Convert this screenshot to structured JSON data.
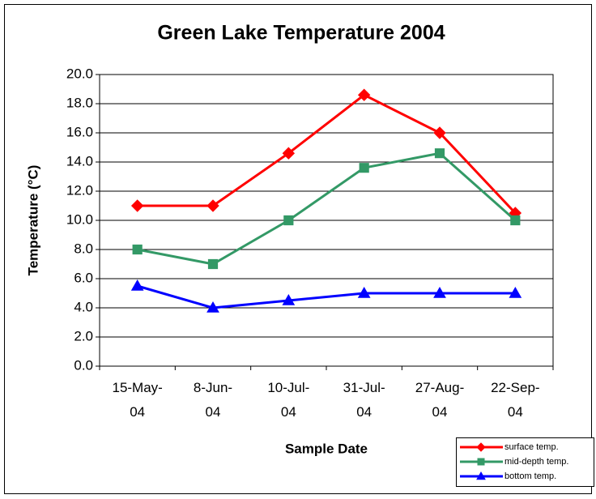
{
  "chart_data": {
    "type": "line",
    "title": "Green Lake Temperature 2004",
    "x_label": "Sample Date",
    "y_label": "Temperature (°C)",
    "categories": [
      "15-May-04",
      "8-Jun-04",
      "10-Jul-04",
      "31-Jul-04",
      "27-Aug-04",
      "22-Sep-04"
    ],
    "series": [
      {
        "name": "surface temp.",
        "color": "#ff0000",
        "marker": "diamond",
        "values": [
          11,
          11,
          14.6,
          18.6,
          16,
          10.5
        ]
      },
      {
        "name": "mid-depth temp.",
        "color": "#339966",
        "marker": "square",
        "values": [
          8,
          7,
          10,
          13.6,
          14.6,
          10
        ]
      },
      {
        "name": "bottom temp.",
        "color": "#0000ff",
        "marker": "triangle",
        "values": [
          5.5,
          4,
          4.5,
          5,
          5,
          5
        ]
      }
    ],
    "ylim": [
      0,
      20
    ],
    "yticks": [
      {
        "value": 0,
        "label": "0.0"
      },
      {
        "value": 2,
        "label": "2.0"
      },
      {
        "value": 4,
        "label": "4.0"
      },
      {
        "value": 6,
        "label": "6.0"
      },
      {
        "value": 8,
        "label": "8.0"
      },
      {
        "value": 10,
        "label": "10.0"
      },
      {
        "value": 12,
        "label": "12.0"
      },
      {
        "value": 14,
        "label": "14.0"
      },
      {
        "value": 16,
        "label": "16.0"
      },
      {
        "value": 18,
        "label": "18.0"
      },
      {
        "value": 20,
        "label": "20.0"
      }
    ],
    "grid": true,
    "legend": "lower right"
  }
}
